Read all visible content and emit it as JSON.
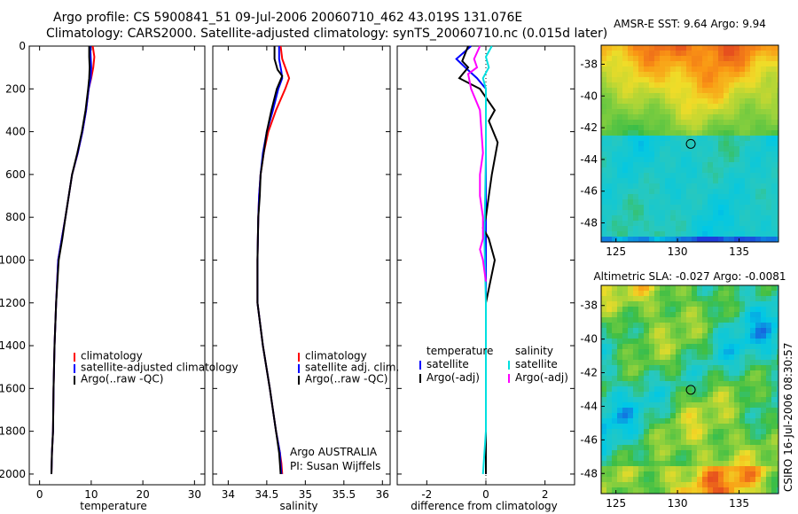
{
  "header": {
    "title": "Argo profile: CS 5900841_51 09-Jul-2006 20060710_462 43.019S 131.076E",
    "subtitle": "Climatology: CARS2000. Satellite-adjusted climatology: synTS_20060710.nc (0.015d later)"
  },
  "colors": {
    "climatology": "#ff0000",
    "satellite": "#0000ff",
    "argo": "#000000",
    "sal_satellite": "#00e0e0",
    "sal_argo": "#ff00ff"
  },
  "chart_data": [
    {
      "type": "line",
      "name": "temperature-profile",
      "xlabel": "temperature",
      "ylabel": "",
      "xlim": [
        -2,
        32
      ],
      "ylim": [
        2050,
        0
      ],
      "xticks": [
        0,
        10,
        20,
        30
      ],
      "yticks": [
        0,
        200,
        400,
        600,
        800,
        1000,
        1200,
        1400,
        1600,
        1800,
        2000
      ],
      "legend": [
        "climatology",
        "satellite-adjusted climatology",
        "Argo(..raw -QC)"
      ],
      "series": [
        {
          "name": "climatology",
          "color": "#ff0000",
          "x": [
            10.3,
            10.6,
            10.4,
            10.0,
            9.5,
            9.0,
            8.3,
            7.4,
            6.3,
            5.0,
            4.3,
            3.6,
            3.2,
            2.9,
            2.7,
            2.6,
            2.4,
            2.3
          ],
          "y": [
            0,
            50,
            100,
            150,
            200,
            300,
            400,
            500,
            600,
            800,
            900,
            1000,
            1200,
            1400,
            1600,
            1800,
            1900,
            2000
          ]
        },
        {
          "name": "satellite",
          "color": "#0000ff",
          "x": [
            9.8,
            9.9,
            10.0,
            9.9,
            9.5,
            9.0,
            8.3,
            7.4,
            6.3,
            5.0,
            4.3,
            3.6,
            3.2,
            2.9,
            2.7,
            2.6,
            2.4,
            2.3
          ],
          "y": [
            0,
            50,
            100,
            150,
            200,
            300,
            400,
            500,
            600,
            800,
            900,
            1000,
            1200,
            1400,
            1600,
            1800,
            1900,
            2000
          ]
        },
        {
          "name": "argo",
          "color": "#000000",
          "x": [
            9.6,
            9.6,
            9.7,
            9.6,
            9.4,
            8.9,
            8.2,
            7.3,
            6.3,
            5.0,
            4.4,
            3.7,
            3.2,
            2.9,
            2.7,
            2.6,
            2.4,
            2.3
          ],
          "y": [
            0,
            50,
            100,
            150,
            200,
            300,
            400,
            500,
            600,
            800,
            900,
            1000,
            1200,
            1400,
            1600,
            1800,
            1900,
            2000
          ]
        }
      ]
    },
    {
      "type": "line",
      "name": "salinity-profile",
      "xlabel": "salinity",
      "xlim": [
        33.8,
        36.1
      ],
      "ylim": [
        2050,
        0
      ],
      "xticks": [
        34,
        34.5,
        35,
        35.5,
        36
      ],
      "legend": [
        "climatology",
        "satellite adj. clim.",
        "Argo(..raw -QC)"
      ],
      "annotation": [
        "Argo AUSTRALIA",
        "PI: Susan Wijffels"
      ],
      "series": [
        {
          "name": "climatology",
          "color": "#ff0000",
          "x": [
            34.68,
            34.7,
            34.76,
            34.79,
            34.74,
            34.62,
            34.52,
            34.46,
            34.42,
            34.4,
            34.39,
            34.38,
            34.38,
            34.45,
            34.54,
            34.62,
            34.67,
            34.69,
            34.7
          ],
          "y": [
            0,
            60,
            120,
            150,
            200,
            300,
            400,
            500,
            600,
            700,
            800,
            1000,
            1200,
            1400,
            1600,
            1800,
            1900,
            1950,
            2000
          ]
        },
        {
          "name": "satellite",
          "color": "#0000ff",
          "x": [
            34.66,
            34.66,
            34.69,
            34.7,
            34.65,
            34.58,
            34.5,
            34.45,
            34.42,
            34.4,
            34.39,
            34.38,
            34.38,
            34.45,
            34.54,
            34.62,
            34.67,
            34.68,
            34.69
          ],
          "y": [
            0,
            60,
            120,
            150,
            200,
            300,
            400,
            500,
            600,
            700,
            800,
            1000,
            1200,
            1400,
            1600,
            1800,
            1900,
            1950,
            2000
          ]
        },
        {
          "name": "argo",
          "color": "#000000",
          "x": [
            34.6,
            34.6,
            34.64,
            34.7,
            34.63,
            34.56,
            34.5,
            34.46,
            34.42,
            34.41,
            34.39,
            34.38,
            34.38,
            34.45,
            34.54,
            34.62,
            34.66,
            34.67,
            34.68
          ],
          "y": [
            0,
            60,
            110,
            140,
            200,
            300,
            400,
            500,
            600,
            700,
            800,
            1000,
            1200,
            1400,
            1600,
            1800,
            1900,
            1950,
            2000
          ]
        }
      ]
    },
    {
      "type": "line",
      "name": "difference-profile",
      "xlabel": "difference from climatology",
      "xlim": [
        -3,
        3
      ],
      "ylim": [
        2050,
        0
      ],
      "xticks": [
        -2,
        0,
        2
      ],
      "legend_temperature": [
        "temperature",
        "satellite",
        "Argo(-adj)"
      ],
      "legend_salinity": [
        "salinity",
        "satellite",
        "Argo(-adj)"
      ],
      "series": [
        {
          "name": "temperature satellite",
          "color": "#0000ff",
          "x": [
            -0.5,
            -1.0,
            -0.7,
            -0.3,
            0.0,
            0.0,
            0.0,
            0.0,
            0.0,
            0.0
          ],
          "y": [
            0,
            60,
            100,
            150,
            200,
            400,
            800,
            1200,
            1600,
            2000
          ]
        },
        {
          "name": "temperature argo",
          "color": "#000000",
          "x": [
            -0.6,
            -0.8,
            -0.6,
            -0.9,
            -0.2,
            0.3,
            0.1,
            0.4,
            0.2,
            0.1,
            0.0,
            -0.1,
            0.1,
            0.3,
            0.0,
            0.0,
            0.0,
            0.0
          ],
          "y": [
            0,
            70,
            100,
            150,
            200,
            300,
            350,
            450,
            600,
            700,
            800,
            850,
            900,
            1000,
            1200,
            1600,
            1800,
            2000
          ]
        },
        {
          "name": "salinity satellite",
          "color": "#00e0e0",
          "x": [
            0.2,
            0.0,
            0.1,
            -0.1,
            0.0,
            0.0,
            -0.05,
            0.0,
            0.0,
            0.0,
            -0.1
          ],
          "y": [
            0,
            50,
            100,
            150,
            200,
            500,
            900,
            1200,
            1600,
            1800,
            2000
          ]
        },
        {
          "name": "salinity argo",
          "color": "#ff00ff",
          "x": [
            -0.2,
            -0.4,
            -0.3,
            -0.6,
            -0.5,
            -0.2,
            -0.1,
            -0.2,
            -0.2,
            -0.1,
            -0.1,
            -0.2,
            -0.1,
            0.0
          ],
          "y": [
            0,
            60,
            100,
            130,
            200,
            300,
            500,
            600,
            700,
            800,
            900,
            950,
            1000,
            1100
          ]
        }
      ]
    },
    {
      "type": "heatmap",
      "name": "amsre-sst-map",
      "title": "AMSR-E SST: 9.64 Argo: 9.94",
      "xticks": [
        125,
        130,
        135
      ],
      "yticks": [
        -38,
        -40,
        -42,
        -44,
        -46,
        -48
      ],
      "xlim": [
        123.8,
        138.2
      ],
      "ylim": [
        -36.8,
        -49.2
      ],
      "marker": {
        "lon": 131.076,
        "lat": -43.019
      }
    },
    {
      "type": "heatmap",
      "name": "altimetric-sla-map",
      "title": "Altimetric SLA: -0.027 Argo: -0.0081",
      "xticks": [
        125,
        130,
        135
      ],
      "yticks": [
        -38,
        -40,
        -42,
        -44,
        -46,
        -48
      ],
      "xlim": [
        123.8,
        138.2
      ],
      "ylim": [
        -36.8,
        -49.2
      ],
      "marker": {
        "lon": 131.076,
        "lat": -43.019
      }
    }
  ],
  "footer": {
    "stamp": "CSIRO 16-Jul-2006 08:30:57"
  }
}
